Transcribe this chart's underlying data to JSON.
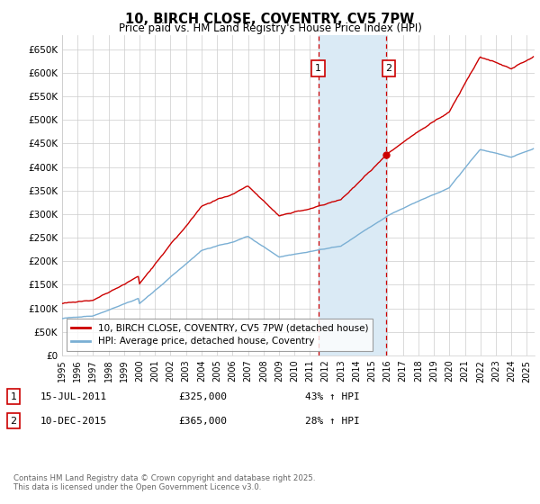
{
  "title": "10, BIRCH CLOSE, COVENTRY, CV5 7PW",
  "subtitle": "Price paid vs. HM Land Registry's House Price Index (HPI)",
  "ylim": [
    0,
    680000
  ],
  "yticks": [
    0,
    50000,
    100000,
    150000,
    200000,
    250000,
    300000,
    350000,
    400000,
    450000,
    500000,
    550000,
    600000,
    650000
  ],
  "ytick_labels": [
    "£0",
    "£50K",
    "£100K",
    "£150K",
    "£200K",
    "£250K",
    "£300K",
    "£350K",
    "£400K",
    "£450K",
    "£500K",
    "£550K",
    "£600K",
    "£650K"
  ],
  "xlim_start": 1995.0,
  "xlim_end": 2025.5,
  "sale1_date": 2011.54,
  "sale1_price": 325000,
  "sale1_label": "1",
  "sale1_date_str": "15-JUL-2011",
  "sale1_price_str": "£325,000",
  "sale1_hpi_str": "43% ↑ HPI",
  "sale2_date": 2015.94,
  "sale2_price": 365000,
  "sale2_label": "2",
  "sale2_date_str": "10-DEC-2015",
  "sale2_price_str": "£365,000",
  "sale2_hpi_str": "28% ↑ HPI",
  "shaded_region_start": 2011.54,
  "shaded_region_end": 2015.94,
  "legend_label_red": "10, BIRCH CLOSE, COVENTRY, CV5 7PW (detached house)",
  "legend_label_blue": "HPI: Average price, detached house, Coventry",
  "footer": "Contains HM Land Registry data © Crown copyright and database right 2025.\nThis data is licensed under the Open Government Licence v3.0.",
  "red_color": "#cc0000",
  "blue_color": "#7aafd4",
  "shaded_color": "#daeaf5",
  "grid_color": "#cccccc",
  "background_color": "#ffffff",
  "label_box_color": "#cc0000"
}
